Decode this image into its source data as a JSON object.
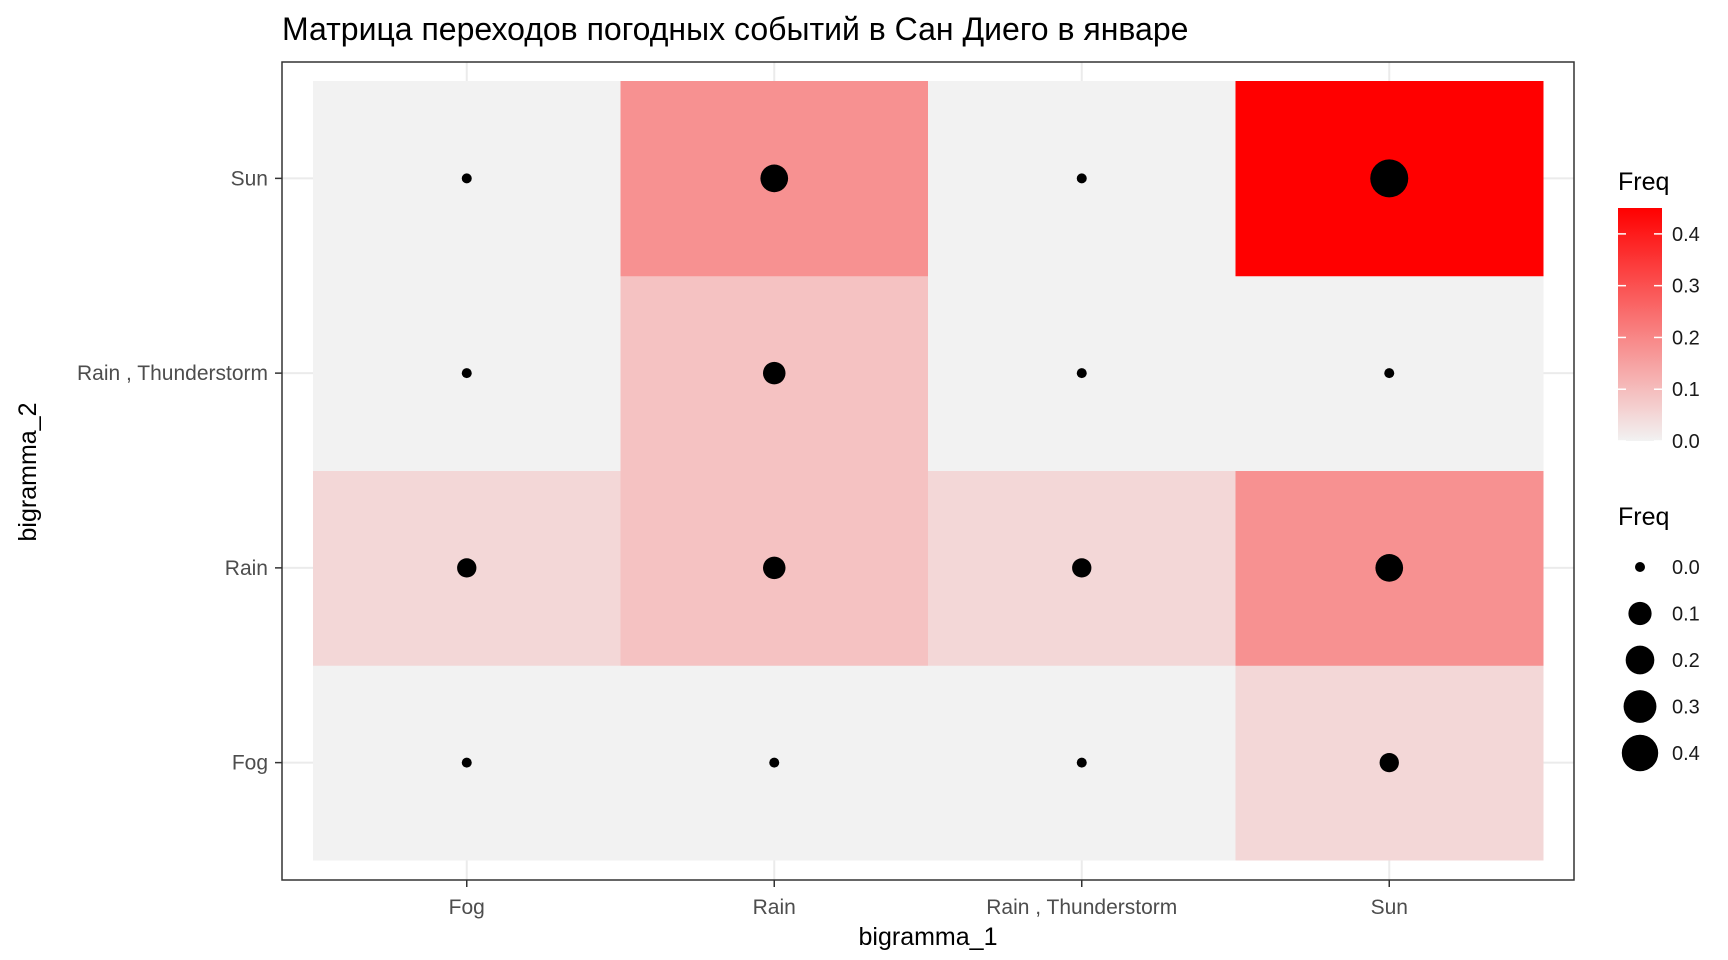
{
  "chart_data": {
    "type": "heatmap",
    "title": "Матрица переходов погодных событий в Сан Диего в январе",
    "xlabel": "bigramma_1",
    "ylabel": "bigramma_2",
    "x_categories": [
      "Fog",
      "Rain",
      "Rain , Thunderstorm",
      "Sun"
    ],
    "y_categories": [
      "Fog",
      "Rain",
      "Rain , Thunderstorm",
      "Sun"
    ],
    "cells": [
      {
        "x": "Fog",
        "y": "Fog",
        "value": 0.0
      },
      {
        "x": "Fog",
        "y": "Rain",
        "value": 0.05
      },
      {
        "x": "Fog",
        "y": "Rain , Thunderstorm",
        "value": 0.0
      },
      {
        "x": "Fog",
        "y": "Sun",
        "value": 0.0
      },
      {
        "x": "Rain",
        "y": "Fog",
        "value": 0.0
      },
      {
        "x": "Rain",
        "y": "Rain",
        "value": 0.09
      },
      {
        "x": "Rain",
        "y": "Rain , Thunderstorm",
        "value": 0.09
      },
      {
        "x": "Rain",
        "y": "Sun",
        "value": 0.18
      },
      {
        "x": "Rain , Thunderstorm",
        "y": "Fog",
        "value": 0.0
      },
      {
        "x": "Rain , Thunderstorm",
        "y": "Rain",
        "value": 0.05
      },
      {
        "x": "Rain , Thunderstorm",
        "y": "Rain , Thunderstorm",
        "value": 0.0
      },
      {
        "x": "Rain , Thunderstorm",
        "y": "Sun",
        "value": 0.0
      },
      {
        "x": "Sun",
        "y": "Fog",
        "value": 0.05
      },
      {
        "x": "Sun",
        "y": "Rain",
        "value": 0.18
      },
      {
        "x": "Sun",
        "y": "Rain , Thunderstorm",
        "value": 0.0
      },
      {
        "x": "Sun",
        "y": "Sun",
        "value": 0.45
      }
    ],
    "fill_scale": {
      "low": "#f2f2f2",
      "high": "#ff0000",
      "range": [
        0,
        0.45
      ]
    },
    "legend_fill": {
      "title": "Freq",
      "breaks": [
        0.0,
        0.1,
        0.2,
        0.3,
        0.4
      ],
      "labels": [
        "0.0",
        "0.1",
        "0.2",
        "0.3",
        "0.4"
      ]
    },
    "legend_size": {
      "title": "Freq",
      "breaks": [
        0.0,
        0.1,
        0.2,
        0.3,
        0.4
      ],
      "labels": [
        "0.0",
        "0.1",
        "0.2",
        "0.3",
        "0.4"
      ]
    },
    "grid": true,
    "legend_position": "right"
  }
}
